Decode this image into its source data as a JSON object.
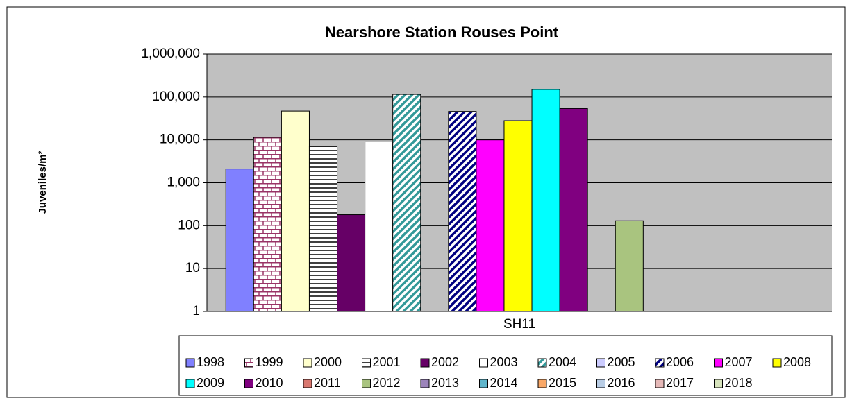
{
  "chart_data": {
    "type": "bar",
    "title": "Nearshore Station Rouses Point",
    "y_label": "Juveniles/m²",
    "categories": [
      "SH11"
    ],
    "log_scale": true,
    "grid": true,
    "legend": "bottom",
    "ylim": [
      1,
      1000000
    ],
    "yticks": [
      1,
      10,
      100,
      {
        "value": 1000,
        "label": "1,000"
      },
      {
        "value": 10000,
        "label": "10,000"
      },
      {
        "value": 100000,
        "label": "100,000"
      },
      {
        "value": 1000000,
        "label": "1,000,000"
      }
    ],
    "series": [
      {
        "name": "1998",
        "color": "#8080ff",
        "values": [
          2100
        ]
      },
      {
        "name": "1999",
        "color": "#993366",
        "pattern": "brick",
        "values": [
          11500
        ]
      },
      {
        "name": "2000",
        "color": "#ffffcc",
        "values": [
          47000
        ]
      },
      {
        "name": "2001",
        "color": "#000000",
        "pattern": "horizontal",
        "values": [
          7000
        ]
      },
      {
        "name": "2002",
        "color": "#660066",
        "values": [
          180
        ]
      },
      {
        "name": "2003",
        "color": "#ffffff",
        "values": [
          9000
        ]
      },
      {
        "name": "2004",
        "color": "#339999",
        "pattern": "diagonal",
        "values": [
          115000
        ]
      },
      {
        "name": "2005",
        "color": "#ccccff",
        "values": [
          null
        ]
      },
      {
        "name": "2006",
        "color": "#000080",
        "pattern": "diagonal",
        "values": [
          46000
        ]
      },
      {
        "name": "2007",
        "color": "#ff00ff",
        "values": [
          10000
        ]
      },
      {
        "name": "2008",
        "color": "#ffff00",
        "values": [
          28000
        ]
      },
      {
        "name": "2009",
        "color": "#00ffff",
        "values": [
          150000
        ]
      },
      {
        "name": "2010",
        "color": "#800080",
        "values": [
          54000
        ]
      },
      {
        "name": "2011",
        "color": "#d9776f",
        "values": [
          null
        ]
      },
      {
        "name": "2012",
        "color": "#a9c47f",
        "values": [
          130
        ]
      },
      {
        "name": "2013",
        "color": "#9c84bb",
        "values": [
          null
        ]
      },
      {
        "name": "2014",
        "color": "#5fb6cc",
        "values": [
          null
        ]
      },
      {
        "name": "2015",
        "color": "#f9a868",
        "values": [
          null
        ]
      },
      {
        "name": "2016",
        "color": "#b9cde5",
        "values": [
          null
        ]
      },
      {
        "name": "2017",
        "color": "#e6b9b8",
        "values": [
          null
        ]
      },
      {
        "name": "2018",
        "color": "#d7e4bd",
        "values": [
          null
        ]
      }
    ]
  }
}
